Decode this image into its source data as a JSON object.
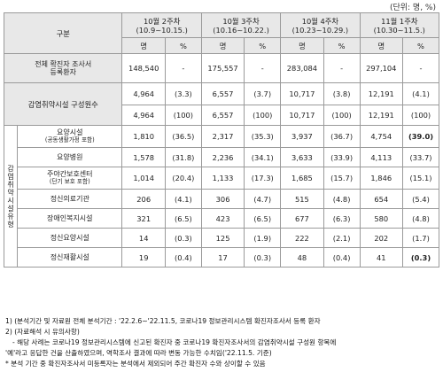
{
  "unit_note": "(단위: 명, %)",
  "header": {
    "category": "구분",
    "periods": [
      {
        "label": "10월 2주차",
        "range": "(10.9~10.15.)"
      },
      {
        "label": "10월 3주차",
        "range": "(10.16~10.22.)"
      },
      {
        "label": "10월 4주차",
        "range": "(10.23~10.29.)"
      },
      {
        "label": "11월 1주차",
        "range": "(10.30~11.5.)"
      }
    ],
    "count_label": "명",
    "pct_label": "%"
  },
  "rows": {
    "total": {
      "label_line1": "전체 확진자 조사서",
      "label_line2": "등록환자",
      "cells": [
        "148,540",
        "-",
        "175,557",
        "-",
        "283,084",
        "-",
        "297,104",
        "-"
      ]
    },
    "vulnerable_a": {
      "label": "감염취약시설 구성원수",
      "cells": [
        "4,964",
        "(3.3)",
        "6,557",
        "(3.7)",
        "10,717",
        "(3.8)",
        "12,191",
        "(4.1)"
      ]
    },
    "vulnerable_b": {
      "cells": [
        "4,964",
        "(100)",
        "6,557",
        "(100)",
        "10,717",
        "(100)",
        "12,191",
        "(100)"
      ]
    },
    "group_label_line1": "감염취약",
    "group_label_line2": "시설유형",
    "facilities": [
      {
        "name": "요양시설",
        "sub": "(공동생활가정 포함)",
        "cells": [
          "1,810",
          "(36.5)",
          "2,317",
          "(35.3)",
          "3,937",
          "(36.7)",
          "4,754",
          "(39.0)"
        ]
      },
      {
        "name": "요양병원",
        "sub": "",
        "cells": [
          "1,578",
          "(31.8)",
          "2,236",
          "(34.1)",
          "3,633",
          "(33.9)",
          "4,113",
          "(33.7)"
        ]
      },
      {
        "name": "주야간보호센터",
        "sub": "(단기 보호 포함)",
        "cells": [
          "1,014",
          "(20.4)",
          "1,133",
          "(17.3)",
          "1,685",
          "(15.7)",
          "1,846",
          "(15.1)"
        ]
      },
      {
        "name": "정신의료기관",
        "sub": "",
        "cells": [
          "206",
          "(4.1)",
          "306",
          "(4.7)",
          "515",
          "(4.8)",
          "654",
          "(5.4)"
        ]
      },
      {
        "name": "장애인복지시설",
        "sub": "",
        "cells": [
          "321",
          "(6.5)",
          "423",
          "(6.5)",
          "677",
          "(6.3)",
          "580",
          "(4.8)"
        ]
      },
      {
        "name": "정신요양시설",
        "sub": "",
        "cells": [
          "14",
          "(0.3)",
          "125",
          "(1.9)",
          "222",
          "(2.1)",
          "202",
          "(1.7)"
        ]
      },
      {
        "name": "정신재활시설",
        "sub": "",
        "cells": [
          "19",
          "(0.4)",
          "17",
          "(0.3)",
          "48",
          "(0.4)",
          "41",
          "(0.3)"
        ]
      }
    ]
  },
  "notes": [
    "1) (분석기간 및 자료원 전체 분석기간 : '22.2.6~'22.11.5, 코로나19 정보관리시스템 확진자조사서 등록 환자",
    "2) (자료해석 시 유의사항)",
    "- 해당 사례는 코로나19 정보관리시스템에 신고된 확진자 중 코로나19 확진자조사서의 감염취약시설 구성원 항목에",
    "'예'라고 응답한 건을 산출하였으며, 역학조사 결과에 따라 변동 가능한 수치임('22.11.5. 기준)",
    "* 분석 기간 중 확진자조사서 미등록자는 분석에서 제외되어 주간 확진자 수와 상이할 수 있음"
  ]
}
